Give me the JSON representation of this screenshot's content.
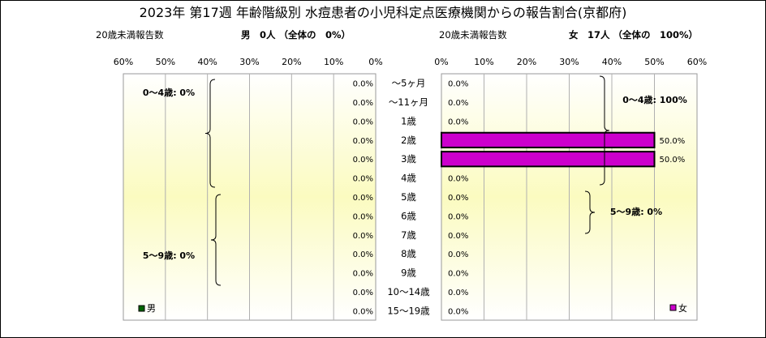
{
  "title": "2023年 第17週 年齢階級別 水痘患者の小児科定点医療機関からの報告割合(京都府)",
  "left_header": {
    "under20_label": "20歳未満報告数",
    "summary": "男　0人 （全体の　0%）"
  },
  "right_header": {
    "under20_label": "20歳未満報告数",
    "summary": "女　17人 （全体の　100%）"
  },
  "chart_data": {
    "type": "bar",
    "orientation": "horizontal-butterfly",
    "categories": [
      "～5ヶ月",
      "～11ヶ月",
      "1歳",
      "2歳",
      "3歳",
      "4歳",
      "5歳",
      "6歳",
      "7歳",
      "8歳",
      "9歳",
      "10～14歳",
      "15～19歳"
    ],
    "xlim": [
      0,
      60
    ],
    "ticks": [
      "0%",
      "10%",
      "20%",
      "30%",
      "40%",
      "50%",
      "60%"
    ],
    "series": [
      {
        "name": "男",
        "color": "#006400",
        "side": "left",
        "values": [
          0,
          0,
          0,
          0,
          0,
          0,
          0,
          0,
          0,
          0,
          0,
          0,
          0
        ],
        "labels": [
          "0.0%",
          "0.0%",
          "0.0%",
          "0.0%",
          "0.0%",
          "0.0%",
          "0.0%",
          "0.0%",
          "0.0%",
          "0.0%",
          "0.0%",
          "0.0%",
          "0.0%"
        ]
      },
      {
        "name": "女",
        "color": "#cc00cc",
        "side": "right",
        "values": [
          0,
          0,
          0,
          50,
          50,
          0,
          0,
          0,
          0,
          0,
          0,
          0,
          0
        ],
        "labels": [
          "0.0%",
          "0.0%",
          "0.0%",
          "50.0%",
          "50.0%",
          "0.0%",
          "0.0%",
          "0.0%",
          "0.0%",
          "0.0%",
          "0.0%",
          "0.0%",
          "0.0%"
        ]
      }
    ],
    "group_annotations": {
      "left": [
        {
          "text": "0～4歳: 0%",
          "from": 0,
          "to": 5
        },
        {
          "text": "5～9歳: 0%",
          "from": 6,
          "to": 10
        }
      ],
      "right": [
        {
          "text": "0～4歳: 100%",
          "from": 0,
          "to": 5
        },
        {
          "text": "5～9歳: 0%",
          "from": 6,
          "to": 10
        }
      ]
    },
    "grid": true,
    "legend": {
      "left": "bottom-left",
      "right": "bottom-right"
    }
  }
}
